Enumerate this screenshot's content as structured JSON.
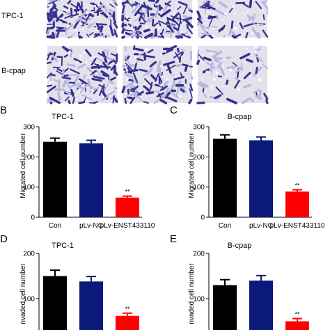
{
  "micrographs": {
    "rows": [
      {
        "label": "TPC-1"
      },
      {
        "label": "B-cpap"
      }
    ],
    "stain_dark": "#3a2f8c",
    "stain_light": "#b9b6dc",
    "background": "#e2e2ec"
  },
  "colors": {
    "con": "#000000",
    "nc": "#0b1a7a",
    "enst": "#ff0000"
  },
  "chart_data": [
    {
      "panel": "B",
      "type": "bar",
      "title": "TPC-1",
      "ylabel": "Migrated cell number",
      "ylim": [
        0,
        300
      ],
      "yticks": [
        0,
        100,
        200,
        300
      ],
      "categories": [
        "Con",
        "pLv-NC",
        "pLv-ENST433110"
      ],
      "values": [
        250,
        245,
        65
      ],
      "errors": [
        12,
        10,
        5
      ],
      "significance": [
        "",
        "",
        "**"
      ]
    },
    {
      "panel": "C",
      "type": "bar",
      "title": "B-cpap",
      "ylabel": "Migrated cell number",
      "ylim": [
        0,
        300
      ],
      "yticks": [
        0,
        100,
        200,
        300
      ],
      "categories": [
        "Con",
        "pLv-NC",
        "pLv-ENST433110"
      ],
      "values": [
        260,
        255,
        85
      ],
      "errors": [
        13,
        11,
        6
      ],
      "significance": [
        "",
        "",
        "**"
      ]
    },
    {
      "panel": "D",
      "type": "bar",
      "title": "TPC-1",
      "ylabel": "nvaded cell number",
      "ylim": [
        0,
        200
      ],
      "yticks": [
        100,
        200
      ],
      "categories": [
        "Con",
        "pLv-NC",
        "pLv-ENST433110"
      ],
      "values": [
        150,
        138,
        62
      ],
      "errors": [
        13,
        11,
        6
      ],
      "significance": [
        "",
        "",
        "**"
      ]
    },
    {
      "panel": "E",
      "type": "bar",
      "title": "B-cpap",
      "ylabel": "nvaded cell number",
      "ylim": [
        0,
        200
      ],
      "yticks": [
        100,
        200
      ],
      "categories": [
        "Con",
        "pLv-NC",
        "pLv-ENST433110"
      ],
      "values": [
        130,
        140,
        50
      ],
      "errors": [
        12,
        11,
        6
      ],
      "significance": [
        "",
        "",
        "**"
      ]
    }
  ]
}
